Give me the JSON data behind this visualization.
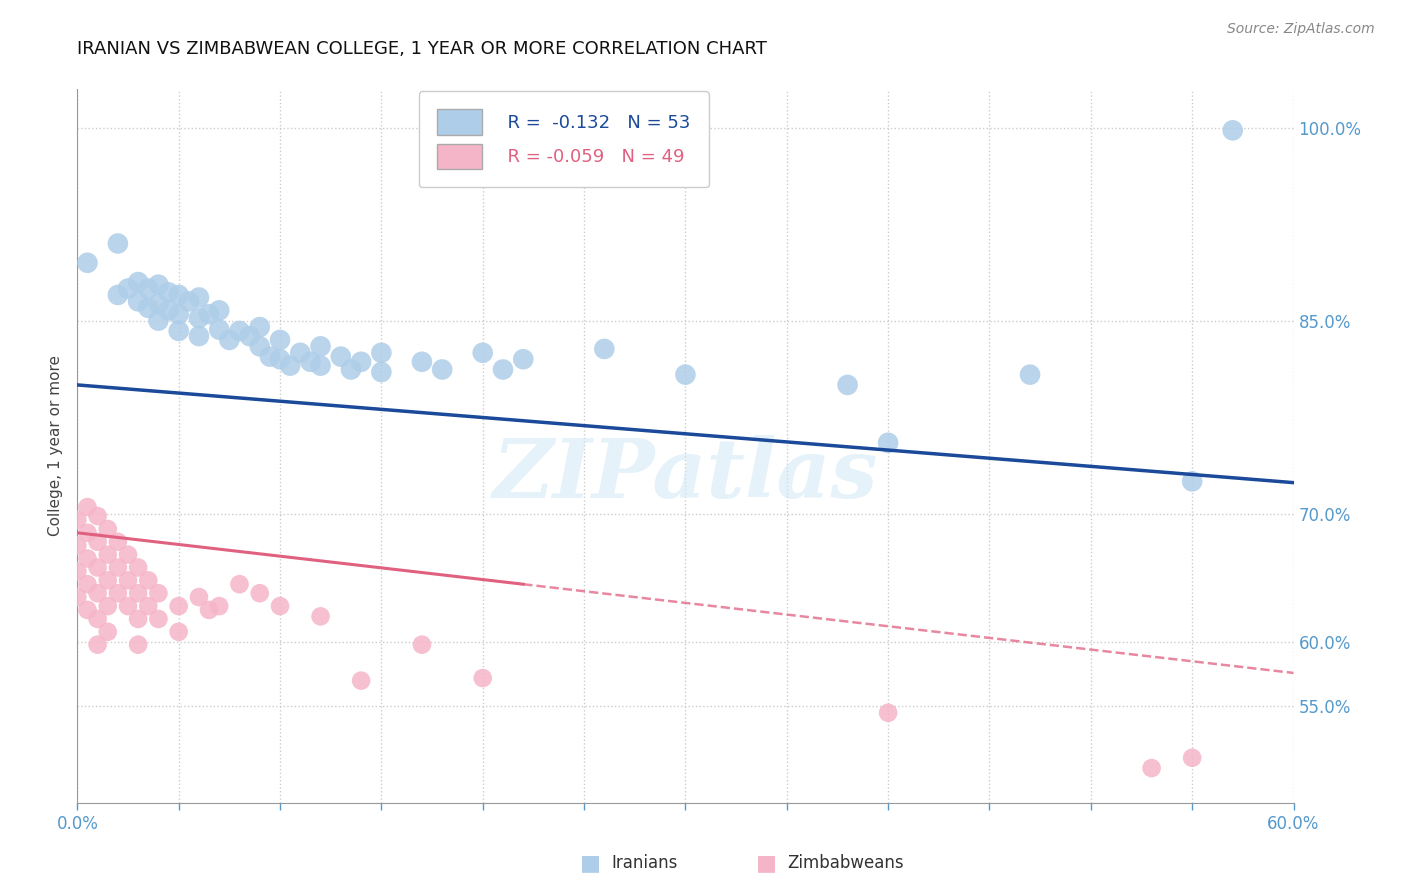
{
  "title": "IRANIAN VS ZIMBABWEAN COLLEGE, 1 YEAR OR MORE CORRELATION CHART",
  "source": "Source: ZipAtlas.com",
  "ylabel_label": "College, 1 year or more",
  "x_min": 0.0,
  "x_max": 0.6,
  "y_min": 0.475,
  "y_max": 1.03,
  "watermark": "ZIPatlas",
  "legend_blue_R": "R =  -0.132",
  "legend_blue_N": "N = 53",
  "legend_pink_R": "R = -0.059",
  "legend_pink_N": "N = 49",
  "blue_trendline": [
    0.0,
    0.8,
    0.6,
    0.724
  ],
  "pink_trendline_solid_x0": 0.0,
  "pink_trendline_solid_y0": 0.685,
  "pink_trendline_solid_x1": 0.22,
  "pink_trendline_solid_y1": 0.645,
  "pink_trendline_dashed_x0": 0.22,
  "pink_trendline_dashed_y0": 0.645,
  "pink_trendline_dashed_x1": 0.6,
  "pink_trendline_dashed_y1": 0.576,
  "blue_scatter": [
    [
      0.005,
      0.895
    ],
    [
      0.02,
      0.91
    ],
    [
      0.02,
      0.87
    ],
    [
      0.025,
      0.875
    ],
    [
      0.03,
      0.88
    ],
    [
      0.03,
      0.865
    ],
    [
      0.035,
      0.875
    ],
    [
      0.035,
      0.86
    ],
    [
      0.04,
      0.878
    ],
    [
      0.04,
      0.863
    ],
    [
      0.04,
      0.85
    ],
    [
      0.045,
      0.872
    ],
    [
      0.045,
      0.858
    ],
    [
      0.05,
      0.87
    ],
    [
      0.05,
      0.855
    ],
    [
      0.05,
      0.842
    ],
    [
      0.055,
      0.865
    ],
    [
      0.06,
      0.868
    ],
    [
      0.06,
      0.852
    ],
    [
      0.06,
      0.838
    ],
    [
      0.065,
      0.855
    ],
    [
      0.07,
      0.858
    ],
    [
      0.07,
      0.843
    ],
    [
      0.075,
      0.835
    ],
    [
      0.08,
      0.842
    ],
    [
      0.085,
      0.838
    ],
    [
      0.09,
      0.845
    ],
    [
      0.09,
      0.83
    ],
    [
      0.095,
      0.822
    ],
    [
      0.1,
      0.835
    ],
    [
      0.1,
      0.82
    ],
    [
      0.105,
      0.815
    ],
    [
      0.11,
      0.825
    ],
    [
      0.115,
      0.818
    ],
    [
      0.12,
      0.83
    ],
    [
      0.12,
      0.815
    ],
    [
      0.13,
      0.822
    ],
    [
      0.135,
      0.812
    ],
    [
      0.14,
      0.818
    ],
    [
      0.15,
      0.825
    ],
    [
      0.15,
      0.81
    ],
    [
      0.17,
      0.818
    ],
    [
      0.18,
      0.812
    ],
    [
      0.2,
      0.825
    ],
    [
      0.21,
      0.812
    ],
    [
      0.22,
      0.82
    ],
    [
      0.26,
      0.828
    ],
    [
      0.3,
      0.808
    ],
    [
      0.38,
      0.8
    ],
    [
      0.4,
      0.755
    ],
    [
      0.47,
      0.808
    ],
    [
      0.55,
      0.725
    ],
    [
      0.57,
      0.998
    ]
  ],
  "pink_scatter": [
    [
      0.0,
      0.695
    ],
    [
      0.0,
      0.675
    ],
    [
      0.0,
      0.655
    ],
    [
      0.0,
      0.635
    ],
    [
      0.005,
      0.705
    ],
    [
      0.005,
      0.685
    ],
    [
      0.005,
      0.665
    ],
    [
      0.005,
      0.645
    ],
    [
      0.005,
      0.625
    ],
    [
      0.01,
      0.698
    ],
    [
      0.01,
      0.678
    ],
    [
      0.01,
      0.658
    ],
    [
      0.01,
      0.638
    ],
    [
      0.01,
      0.618
    ],
    [
      0.01,
      0.598
    ],
    [
      0.015,
      0.688
    ],
    [
      0.015,
      0.668
    ],
    [
      0.015,
      0.648
    ],
    [
      0.015,
      0.628
    ],
    [
      0.015,
      0.608
    ],
    [
      0.02,
      0.678
    ],
    [
      0.02,
      0.658
    ],
    [
      0.02,
      0.638
    ],
    [
      0.025,
      0.668
    ],
    [
      0.025,
      0.648
    ],
    [
      0.025,
      0.628
    ],
    [
      0.03,
      0.658
    ],
    [
      0.03,
      0.638
    ],
    [
      0.03,
      0.618
    ],
    [
      0.03,
      0.598
    ],
    [
      0.035,
      0.648
    ],
    [
      0.035,
      0.628
    ],
    [
      0.04,
      0.638
    ],
    [
      0.04,
      0.618
    ],
    [
      0.05,
      0.628
    ],
    [
      0.05,
      0.608
    ],
    [
      0.06,
      0.635
    ],
    [
      0.065,
      0.625
    ],
    [
      0.07,
      0.628
    ],
    [
      0.08,
      0.645
    ],
    [
      0.09,
      0.638
    ],
    [
      0.1,
      0.628
    ],
    [
      0.12,
      0.62
    ],
    [
      0.14,
      0.57
    ],
    [
      0.17,
      0.598
    ],
    [
      0.2,
      0.572
    ],
    [
      0.4,
      0.545
    ],
    [
      0.53,
      0.502
    ],
    [
      0.55,
      0.51
    ]
  ],
  "blue_color": "#aecde8",
  "pink_color": "#f5b5c8",
  "blue_line_color": "#1a4a99",
  "pink_line_color": "#e06080",
  "tick_color": "#5599cc",
  "bg_color": "#ffffff",
  "grid_color": "#cccccc"
}
